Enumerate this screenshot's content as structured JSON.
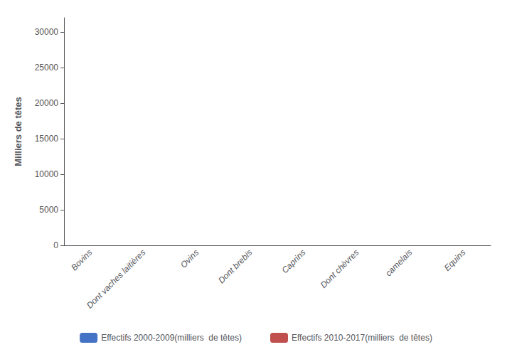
{
  "chart_data": {
    "type": "bar",
    "categories": [
      "Bovins",
      "Dont vaches laitières",
      "Ovins",
      "Dont brebis",
      "Caprins",
      "Dont chèvres",
      "camelais",
      "Equins"
    ],
    "series": [
      {
        "name": "Effectifs 2000-2009(milliers  de têtes)",
        "color": "#4472C4",
        "values": [
          0,
          0,
          0,
          0,
          0,
          0,
          0,
          0
        ]
      },
      {
        "name": "Effectifs 2010-2017(milliers  de têtes)",
        "color": "#C0504D",
        "values": [
          0,
          0,
          0,
          0,
          0,
          0,
          0,
          0
        ]
      }
    ],
    "ylabel": "Milliers de têtes",
    "ylim": [
      0,
      32000
    ],
    "yticks": [
      0,
      5000,
      10000,
      15000,
      20000,
      25000,
      30000
    ],
    "grid": false,
    "legend": "bottom"
  }
}
